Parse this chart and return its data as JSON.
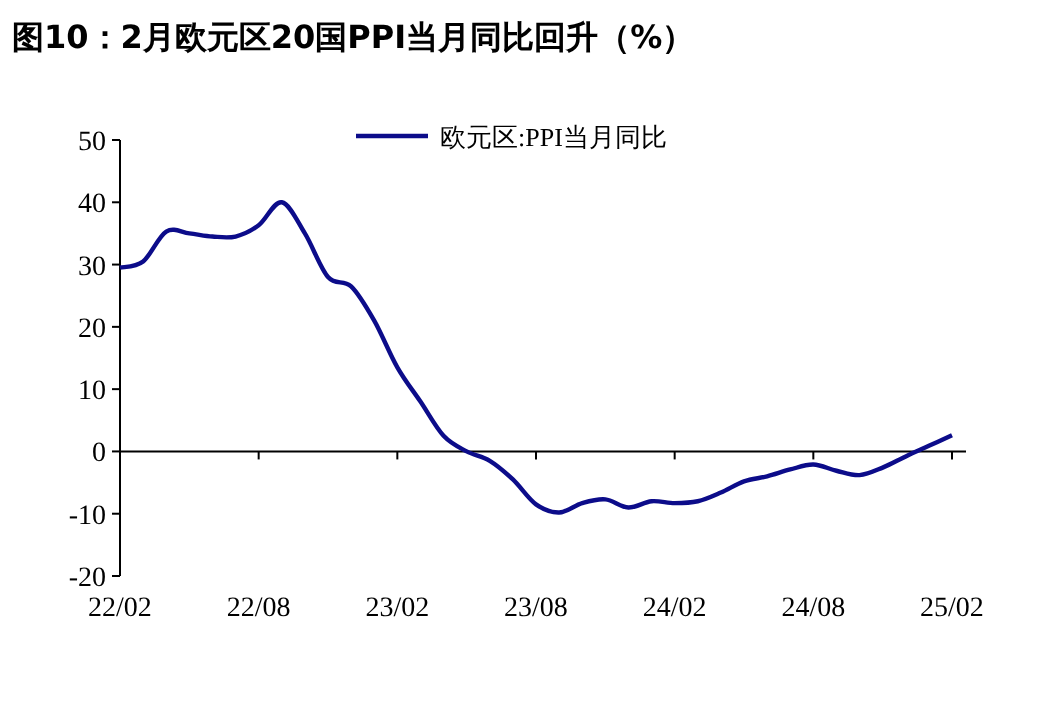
{
  "chart_data": {
    "type": "line",
    "title": "图10：2月欧元区20国PPI当月同比回升（%）",
    "categories": [
      "22/02",
      null,
      null,
      null,
      null,
      null,
      "22/08",
      null,
      null,
      null,
      null,
      null,
      "23/02",
      null,
      null,
      null,
      null,
      null,
      "23/08",
      null,
      null,
      null,
      null,
      null,
      "24/02",
      null,
      null,
      null,
      null,
      null,
      "24/08",
      null,
      null,
      null,
      null,
      null,
      "25/02"
    ],
    "series": [
      {
        "name": "欧元区:PPI当月同比",
        "color": "#0c0c8a",
        "values": [
          29.5,
          30.5,
          35.3,
          35,
          34.5,
          34.5,
          36.3,
          40,
          35,
          28,
          26.5,
          21,
          13.5,
          8,
          2.5,
          0,
          -1.5,
          -4.5,
          -8.5,
          -9.8,
          -8.3,
          -7.7,
          -9,
          -8,
          -8.3,
          -8,
          -6.6,
          -4.8,
          -4,
          -2.9,
          -2.1,
          -3.1,
          -3.8,
          -2.6,
          -0.8,
          0.9,
          2.6
        ]
      }
    ],
    "ylim": [
      -20,
      50
    ],
    "yticks": [
      -20,
      -10,
      0,
      10,
      20,
      30,
      40,
      50
    ],
    "legend": "top",
    "line_style": "solid",
    "marker": "none"
  }
}
